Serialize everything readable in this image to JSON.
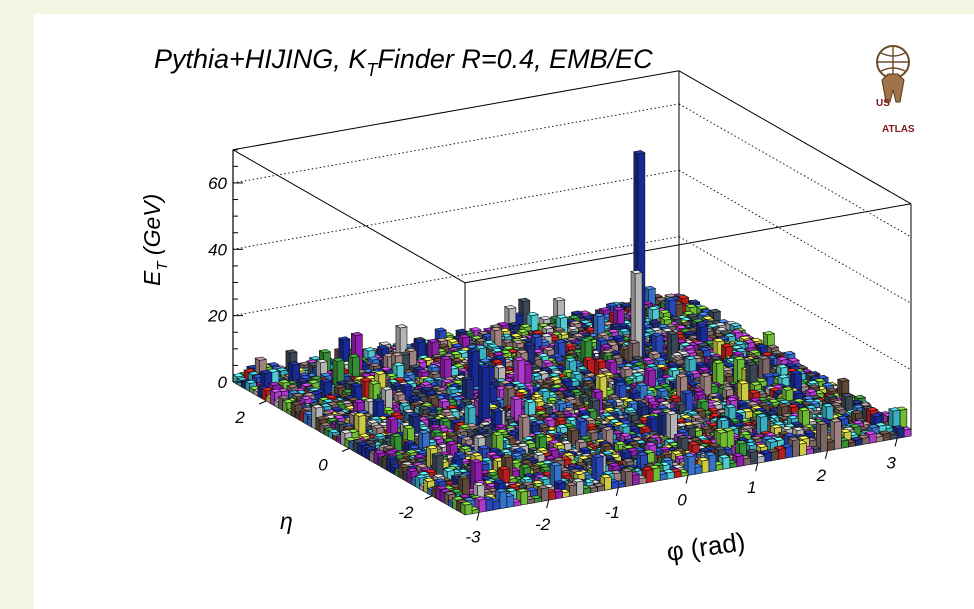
{
  "chart_data": {
    "type": "lego3d",
    "title": "Pythia+HIJING, K",
    "title_sub": "T",
    "title_rest": "Finder R=0.4, EMB/EC",
    "zlabel_main": "E",
    "zlabel_sub": "T",
    "zlabel_rest": " (GeV)",
    "xlabel": "φ (rad)",
    "ylabel": "η",
    "x_range": [
      -3.2,
      3.2
    ],
    "y_range": [
      -2.8,
      2.8
    ],
    "z_range": [
      0,
      70
    ],
    "x_ticks": [
      "-3",
      "-2",
      "-1",
      "0",
      "1",
      "2",
      "3"
    ],
    "y_ticks": [
      "-2",
      "0",
      "2"
    ],
    "z_ticks": [
      "0",
      "20",
      "40",
      "60"
    ],
    "grid": true,
    "peaks": [
      {
        "phi": 1.6,
        "eta": 1.1,
        "et": 63
      },
      {
        "phi": 1.5,
        "eta": 1.0,
        "et": 28
      },
      {
        "phi": -1.4,
        "eta": -0.2,
        "et": 19
      },
      {
        "phi": -0.9,
        "eta": 0.9,
        "et": 14
      },
      {
        "phi": -1.8,
        "eta": 2.2,
        "et": 13
      },
      {
        "phi": -1.1,
        "eta": 2.3,
        "et": 12
      },
      {
        "phi": -2.3,
        "eta": 1.8,
        "et": 10
      }
    ]
  },
  "logo": {
    "name": "us-atlas-logo",
    "text_us": "US",
    "text_atlas": "ATLAS"
  },
  "colors": {
    "background": "#f2f7e3",
    "panel": "#ffffff"
  }
}
